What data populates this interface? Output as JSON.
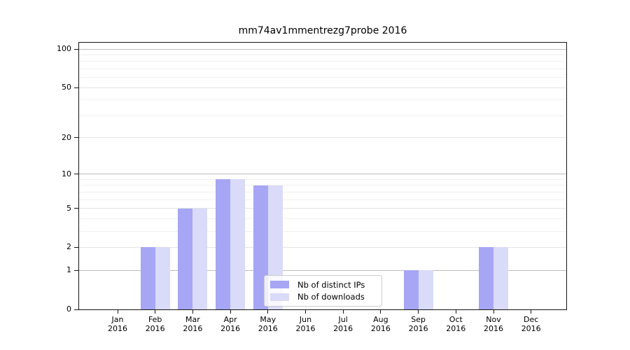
{
  "title": "mm74av1mmentrezg7probe 2016",
  "chart_data": {
    "type": "bar",
    "title": "mm74av1mmentrezg7probe 2016",
    "categories": [
      "Jan 2016",
      "Feb 2016",
      "Mar 2016",
      "Apr 2016",
      "May 2016",
      "Jun 2016",
      "Jul 2016",
      "Aug 2016",
      "Sep 2016",
      "Oct 2016",
      "Nov 2016",
      "Dec 2016"
    ],
    "months": [
      "Jan",
      "Feb",
      "Mar",
      "Apr",
      "May",
      "Jun",
      "Jul",
      "Aug",
      "Sep",
      "Oct",
      "Nov",
      "Dec"
    ],
    "year": "2016",
    "series": [
      {
        "name": "Nb of distinct IPs",
        "color": "#a6a6f5",
        "values": [
          0,
          2,
          5,
          9,
          8,
          0,
          0,
          0,
          1,
          0,
          2,
          0
        ]
      },
      {
        "name": "Nb of downloads",
        "color": "#dadaf9",
        "values": [
          0,
          2,
          5,
          9,
          8,
          0,
          0,
          0,
          1,
          0,
          2,
          0
        ]
      }
    ],
    "y_ticks": [
      0,
      1,
      2,
      5,
      10,
      20,
      50,
      100
    ],
    "y_scale": "log1p",
    "ylim": [
      0,
      115
    ],
    "grid": true,
    "legend_position": "lower center"
  },
  "legend": {
    "items": [
      {
        "label": "Nb of distinct IPs",
        "color": "#a6a6f5"
      },
      {
        "label": "Nb of downloads",
        "color": "#dadaf9"
      }
    ]
  },
  "colors": {
    "background": "#ffffff",
    "axis": "#141414",
    "grid_major": "#bdbdbd",
    "grid_mid": "#e3e3e3",
    "grid_minor": "#f0f0f0",
    "text": "#000000",
    "legend_border": "#cccccc",
    "bar_dark": "#a6a6f5",
    "bar_light": "#dadaf9"
  }
}
